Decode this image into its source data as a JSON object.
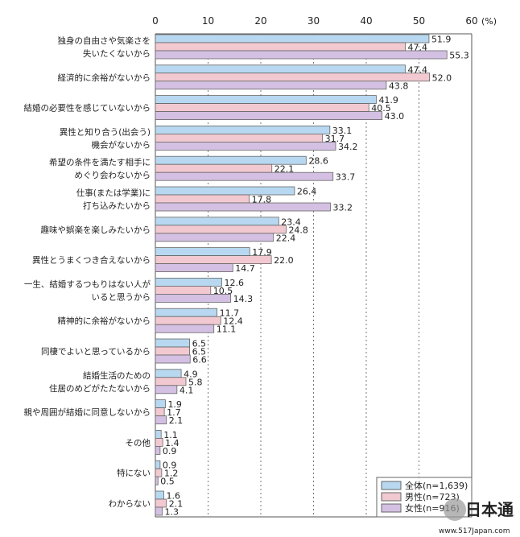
{
  "chart_data": {
    "type": "bar",
    "orientation": "horizontal",
    "categories": [
      "独身の自由さや気楽さを\n失いたくないから",
      "経済的に余裕がないから",
      "結婚の必要性を感じていないから",
      "異性と知り合う(出会う)\n機会がないから",
      "希望の条件を満たす相手に\nめぐり会わないから",
      "仕事(または学業)に\n打ち込みたいから",
      "趣味や娯楽を楽しみたいから",
      "異性とうまくつき合えないから",
      "一生、結婚するつもりはない人が\nいると思うから",
      "精神的に余裕がないから",
      "同棲でよいと思っているから",
      "結婚生活のための\n住居のめどがたたないから",
      "親や周囲が結婚に同意しないから",
      "その他",
      "特にない",
      "わからない"
    ],
    "series": [
      {
        "name": "全体(n=1,639)",
        "color": "#b7d8f0",
        "values": [
          51.9,
          47.4,
          41.9,
          33.1,
          28.6,
          26.4,
          23.4,
          17.9,
          12.6,
          11.7,
          6.5,
          4.9,
          1.9,
          1.1,
          0.9,
          1.6
        ]
      },
      {
        "name": "男性(n=723)",
        "color": "#f2c9d1",
        "values": [
          47.4,
          52.0,
          40.5,
          31.7,
          22.1,
          17.8,
          24.8,
          22.0,
          10.5,
          12.4,
          6.5,
          5.8,
          1.7,
          1.4,
          1.2,
          2.1
        ]
      },
      {
        "name": "女性(n=916)",
        "color": "#d4c0e2",
        "values": [
          55.3,
          43.8,
          43.0,
          34.2,
          33.7,
          33.2,
          22.4,
          14.7,
          14.3,
          11.1,
          6.6,
          4.1,
          2.1,
          0.9,
          0.5,
          1.3
        ]
      }
    ],
    "xticks": [
      "0",
      "10",
      "20",
      "30",
      "40",
      "50",
      "60"
    ],
    "xunit": "(%)",
    "xlim": [
      0,
      60
    ],
    "grid": "vertical dashed",
    "legend": "bottom-right"
  },
  "watermark": "日本通 www.517Japan.com"
}
